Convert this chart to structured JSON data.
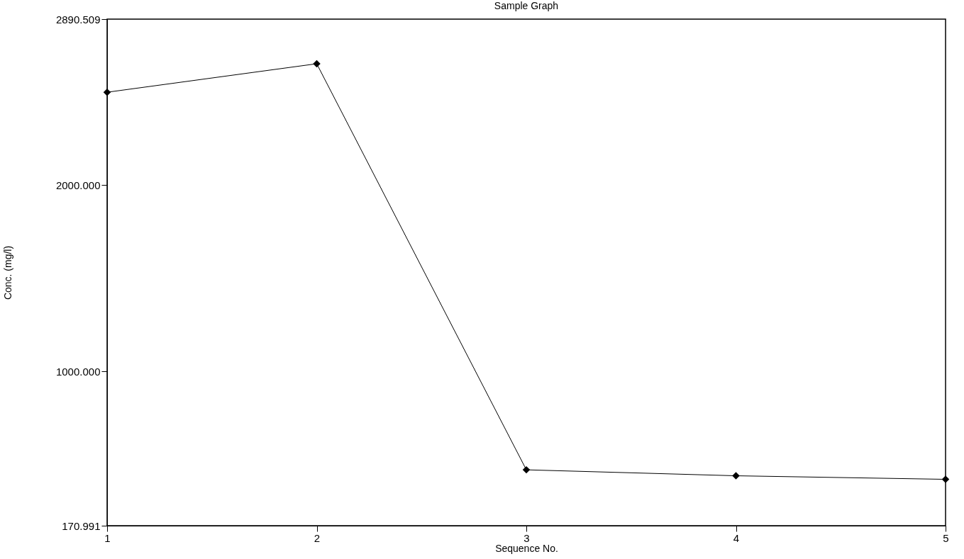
{
  "chart_data": {
    "type": "line",
    "title": "Sample Graph",
    "xlabel": "Sequence No.",
    "ylabel": "Conc. (mg/l)",
    "x": [
      1,
      2,
      3,
      4,
      5
    ],
    "series": [
      {
        "color": "#000000",
        "values": [
          2498,
          2651,
          471,
          439,
          420
        ]
      }
    ],
    "xlim": [
      1,
      5
    ],
    "xticks": [
      1,
      2,
      3,
      4,
      5
    ],
    "ylim": [
      170.991,
      2890.509
    ],
    "yticks": [
      {
        "value": 170.991,
        "label": "170.991"
      },
      {
        "value": 1000,
        "label": "1000.000"
      },
      {
        "value": 2000,
        "label": "2000.000"
      },
      {
        "value": 2890.509,
        "label": "2890.509"
      }
    ],
    "marker": "diamond",
    "line_style": "solid",
    "grid": false
  }
}
